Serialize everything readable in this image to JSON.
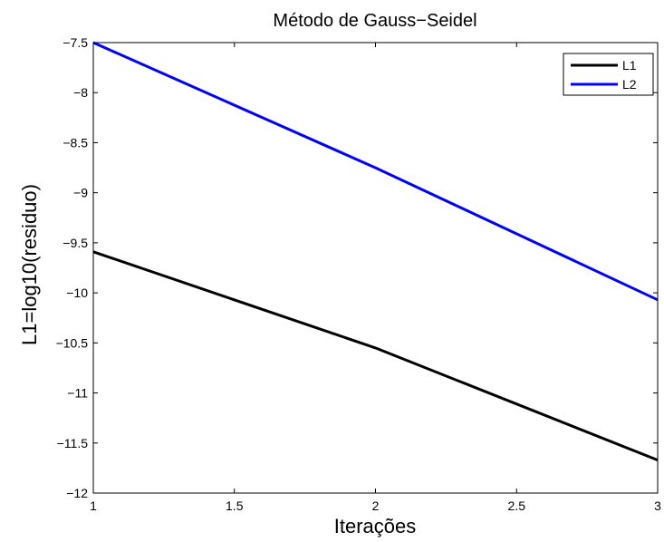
{
  "chart_data": {
    "type": "line",
    "title": "Método de Gauss−Seidel",
    "xlabel": "Iterações",
    "ylabel": "L1=log10(residuo)",
    "xlim": [
      1,
      3
    ],
    "ylim": [
      -12,
      -7.5
    ],
    "x_ticks": [
      1,
      1.5,
      2,
      2.5,
      3
    ],
    "x_tick_labels": [
      "1",
      "1.5",
      "2",
      "2.5",
      "3"
    ],
    "y_ticks": [
      -7.5,
      -8,
      -8.5,
      -9,
      -9.5,
      -10,
      -10.5,
      -11,
      -11.5,
      -12
    ],
    "y_tick_labels": [
      "−7.5",
      "−8",
      "−8.5",
      "−9",
      "−9.5",
      "−10",
      "−10.5",
      "−11",
      "−11.5",
      "−12"
    ],
    "grid": false,
    "legend_position": "top-right",
    "x": [
      1,
      2,
      3
    ],
    "series": [
      {
        "name": "L1",
        "color": "#000000",
        "values": [
          -9.59,
          -10.55,
          -11.67
        ]
      },
      {
        "name": "L2",
        "color": "#0000ff",
        "values": [
          -7.5,
          -8.75,
          -10.07
        ]
      }
    ]
  }
}
